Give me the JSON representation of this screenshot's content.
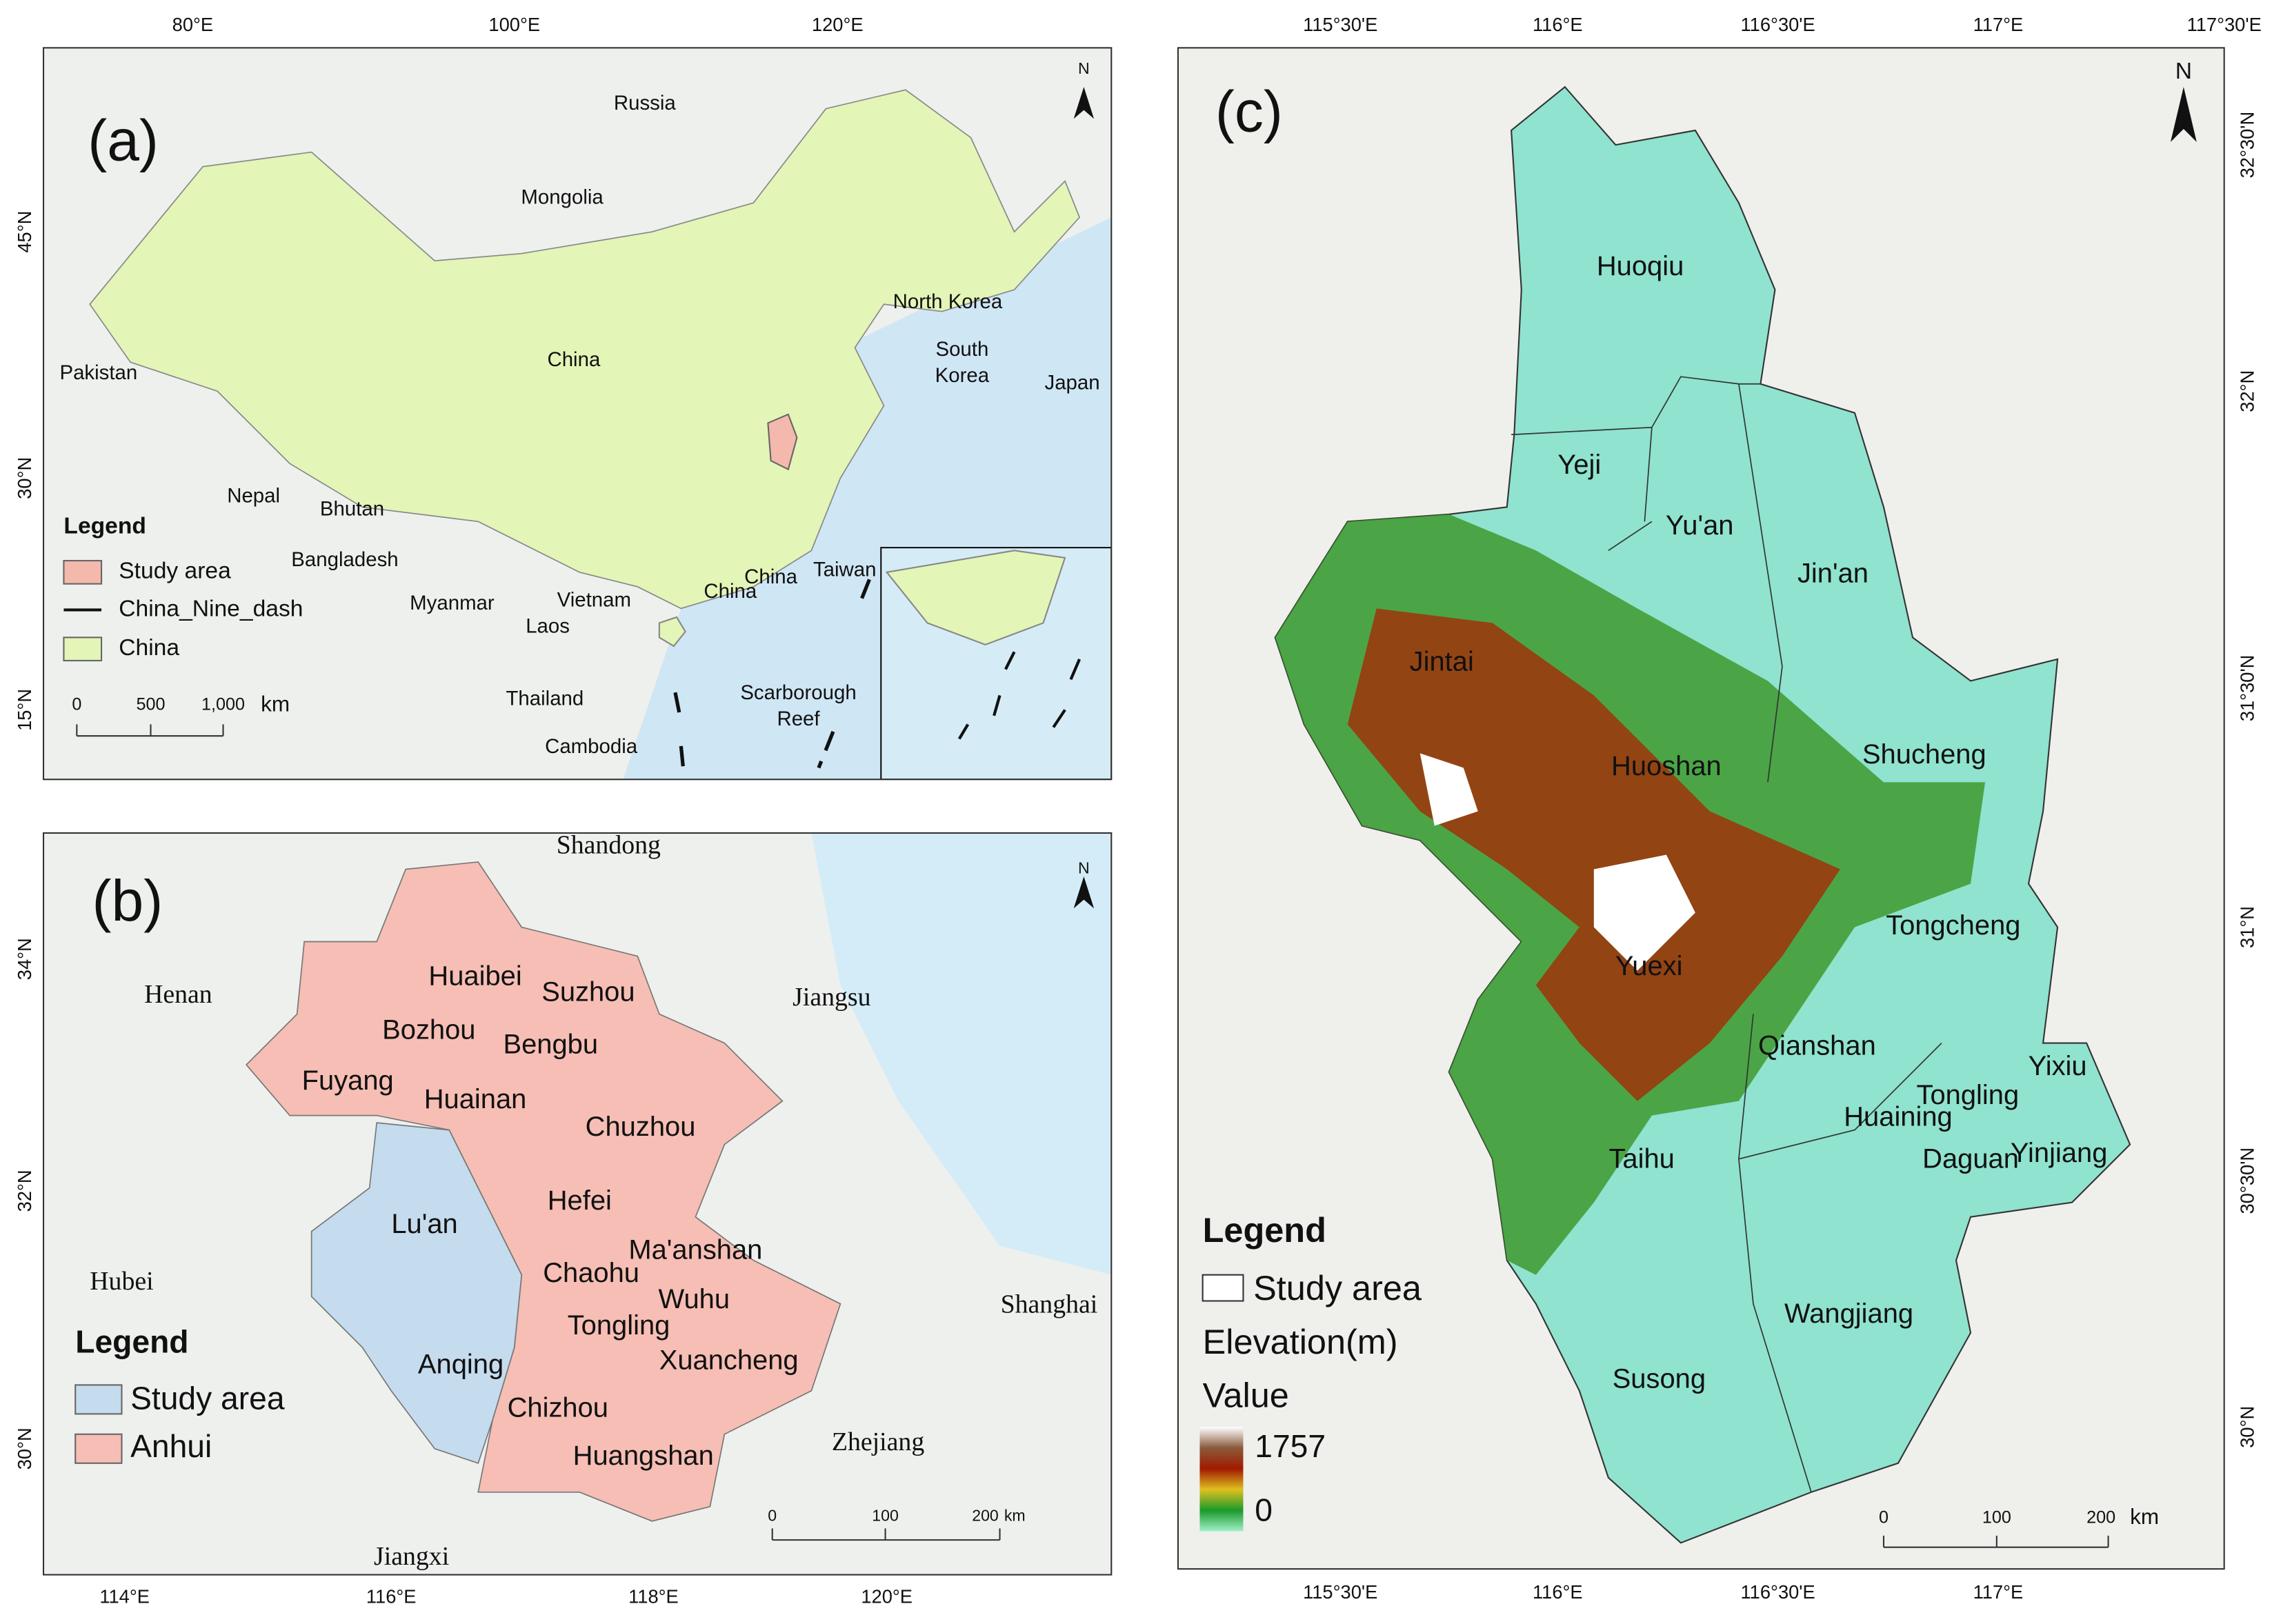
{
  "panel_a": {
    "label": "(a)",
    "north": "N",
    "top_ticks": [
      "80°E",
      "100°E",
      "120°E"
    ],
    "left_ticks": [
      "45°N",
      "30°N",
      "15°N"
    ],
    "places": [
      "Russia",
      "Mongolia",
      "North Korea",
      [
        "South",
        "Korea"
      ],
      "Japan",
      "Pakistan",
      "China",
      "Nepal",
      "Bhutan",
      "Bangladesh",
      "Myanmar",
      "Vietnam",
      "Laos",
      "Thailand",
      "Cambodia",
      "China",
      "China",
      "Taiwan",
      [
        "Scarborough",
        "Reef"
      ]
    ],
    "legend": {
      "title": "Legend",
      "items": [
        "Study area",
        "China_Nine_dash",
        "China"
      ]
    },
    "scale": {
      "ticks": [
        "0",
        "500",
        "1,000"
      ],
      "unit": "km"
    }
  },
  "panel_b": {
    "label": "(b)",
    "north": "N",
    "bottom_ticks": [
      "114°E",
      "116°E",
      "118°E",
      "120°E"
    ],
    "left_ticks": [
      "34°N",
      "32°N",
      "30°N"
    ],
    "provinces": [
      "Shandong",
      "Henan",
      "Jiangsu",
      "Hubei",
      "Shanghai",
      "Zhejiang",
      "Jiangxi"
    ],
    "cities": [
      "Huaibei",
      "Suzhou",
      "Bozhou",
      "Bengbu",
      "Fuyang",
      "Huainan",
      "Chuzhou",
      "Hefei",
      "Lu'an",
      "Ma'anshan",
      "Chaohu",
      "Wuhu",
      "Tongling",
      "Anqing",
      "Xuancheng",
      "Chizhou",
      "Huangshan"
    ],
    "legend": {
      "title": "Legend",
      "items": [
        "Study area",
        "Anhui"
      ]
    },
    "scale": {
      "ticks": [
        "0",
        "100",
        "200"
      ],
      "unit": "km"
    }
  },
  "panel_c": {
    "label": "(c)",
    "north": "N",
    "top_ticks": [
      "115°30'E",
      "116°E",
      "116°30'E",
      "117°E",
      "117°30'E"
    ],
    "bottom_ticks": [
      "115°30'E",
      "116°E",
      "116°30'E",
      "117°E"
    ],
    "right_ticks": [
      "32°30'N",
      "32°N",
      "31°30'N",
      "31°N",
      "30°30'N",
      "30°N"
    ],
    "counties": [
      "Huoqiu",
      "Yeji",
      "Yu'an",
      "Jin'an",
      "Jintai",
      "Huoshan",
      "Shucheng",
      "Tongcheng",
      "Yuexi",
      "Qianshan",
      "Huaining",
      "Tongling",
      "Yixiu",
      "Daguan",
      "Yinjiang",
      "Taihu",
      "Wangjiang",
      "Susong"
    ],
    "legend": {
      "title": "Legend",
      "study_area": "Study area",
      "elevation": "Elevation(m)",
      "value": "Value",
      "max": "1757",
      "min": "0"
    },
    "scale": {
      "ticks": [
        "0",
        "100",
        "200"
      ],
      "unit": "km"
    }
  }
}
